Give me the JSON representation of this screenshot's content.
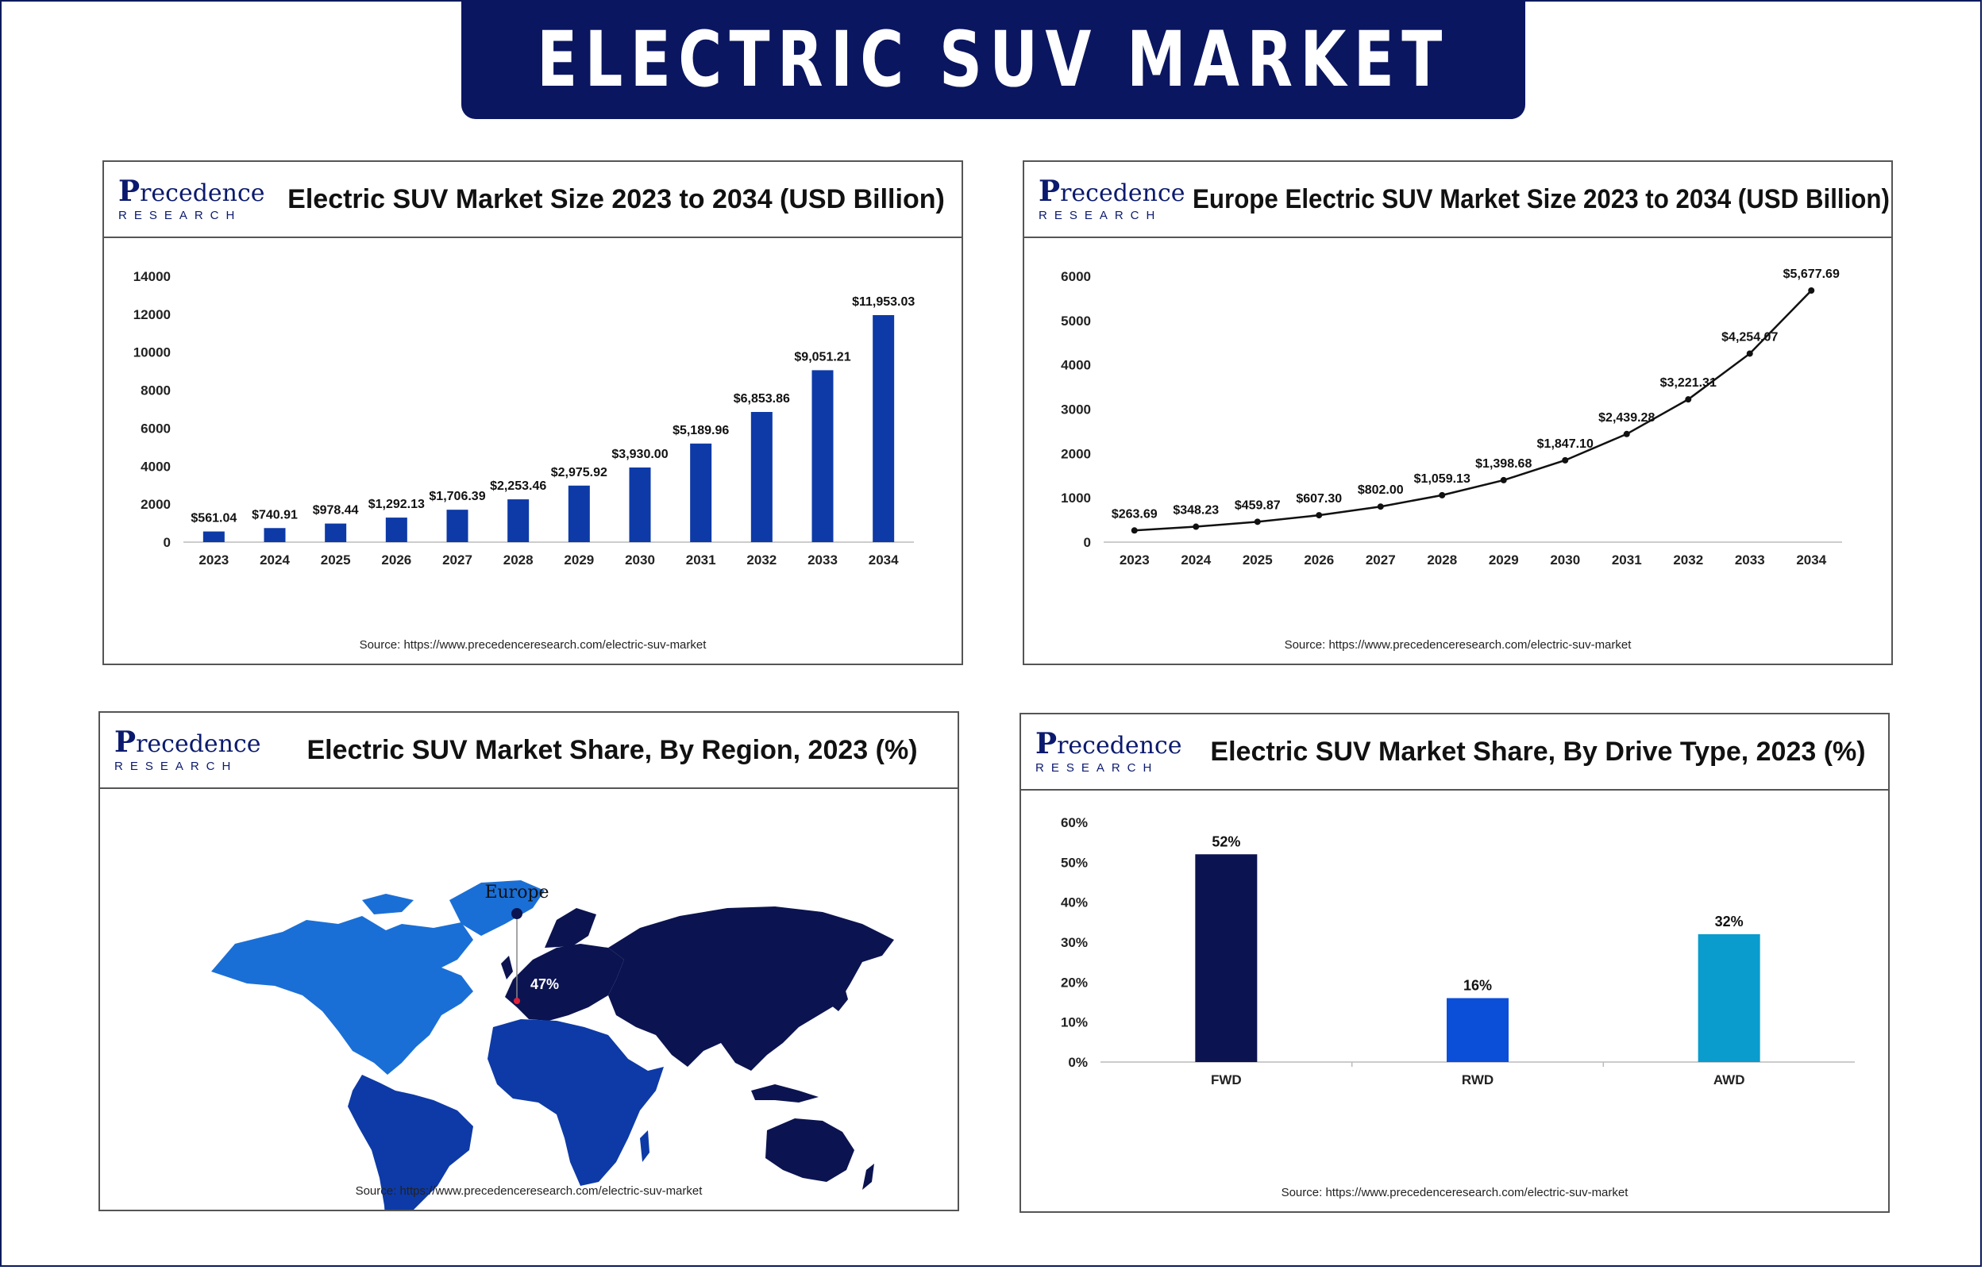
{
  "page": {
    "title": "ELECTRIC SUV MARKET",
    "logo": {
      "top": "recedence",
      "initial": "P",
      "bottom": "RESEARCH"
    },
    "source": "Source: https://www.precedenceresearch.com/electric-suv-market"
  },
  "colors": {
    "navy": "#0b1660",
    "bar_blue": "#0d3aa6",
    "line": "#111111",
    "europe_dark": "#0b1450",
    "north_america": "#1a6fd6",
    "latin_america": "#0d3aa6",
    "africa": "#0d3aa6",
    "asia": "#0b1450",
    "fwd": "#0b1450",
    "rwd": "#0b4fd8",
    "awd": "#0a9ccc"
  },
  "chart_data": [
    {
      "type": "bar",
      "title": "Electric SUV Market Size 2023 to 2034 (USD Billion)",
      "categories": [
        "2023",
        "2024",
        "2025",
        "2026",
        "2027",
        "2028",
        "2029",
        "2030",
        "2031",
        "2032",
        "2033",
        "2034"
      ],
      "values": [
        561.04,
        740.91,
        978.44,
        1292.13,
        1706.39,
        2253.46,
        2975.92,
        3930.0,
        5189.96,
        6853.86,
        9051.21,
        11953.03
      ],
      "data_labels": [
        "$561.04",
        "$740.91",
        "$978.44",
        "$1,292.13",
        "$1,706.39",
        "$2,253.46",
        "$2,975.92",
        "$3,930.00",
        "$5,189.96",
        "$6,853.86",
        "$9,051.21",
        "$11,953.03"
      ],
      "yticks": [
        "0",
        "2000",
        "4000",
        "6000",
        "8000",
        "10000",
        "12000",
        "14000"
      ],
      "ylim": [
        0,
        14000
      ],
      "grid": false
    },
    {
      "type": "line",
      "title": "Europe Electric SUV Market Size 2023 to 2034 (USD Billion)",
      "categories": [
        "2023",
        "2024",
        "2025",
        "2026",
        "2027",
        "2028",
        "2029",
        "2030",
        "2031",
        "2032",
        "2033",
        "2034"
      ],
      "values": [
        263.69,
        348.23,
        459.87,
        607.3,
        802.0,
        1059.13,
        1398.68,
        1847.1,
        2439.28,
        3221.31,
        4254.07,
        5677.69
      ],
      "data_labels": [
        "$263.69",
        "$348.23",
        "$459.87",
        "$607.30",
        "$802.00",
        "$1,059.13",
        "$1,398.68",
        "$1,847.10",
        "$2,439.28",
        "$3,221.31",
        "$4,254.07",
        "$5,677.69"
      ],
      "yticks": [
        "0",
        "1000",
        "2000",
        "3000",
        "4000",
        "5000",
        "6000"
      ],
      "ylim": [
        0,
        6000
      ],
      "grid": false
    },
    {
      "type": "map",
      "title": "Electric SUV Market Share, By Region, 2023 (%)",
      "highlight_region": "Europe",
      "highlight_value": "47%"
    },
    {
      "type": "bar",
      "title": "Electric SUV Market Share, By Drive Type, 2023 (%)",
      "categories": [
        "FWD",
        "RWD",
        "AWD"
      ],
      "values": [
        52,
        16,
        32
      ],
      "data_labels": [
        "52%",
        "16%",
        "32%"
      ],
      "yticks": [
        "0%",
        "10%",
        "20%",
        "30%",
        "40%",
        "50%",
        "60%"
      ],
      "ylim": [
        0,
        60
      ],
      "grid": false
    }
  ]
}
